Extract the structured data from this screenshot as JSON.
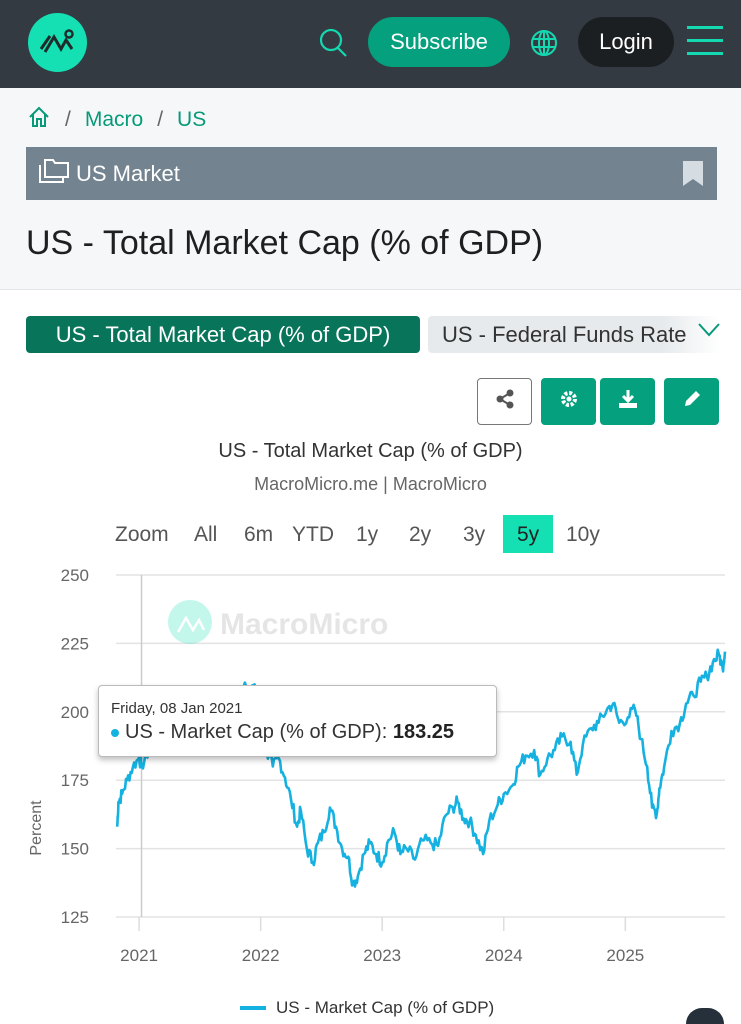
{
  "header": {
    "subscribe_label": "Subscribe",
    "login_label": "Login"
  },
  "breadcrumb": [
    "Macro",
    "US"
  ],
  "category": "US Market",
  "page_title": "US - Total Market Cap (% of GDP)",
  "tabs": [
    {
      "label": "US - Total Market Cap (% of GDP)",
      "active": true
    },
    {
      "label": "US - Federal Funds Rate",
      "active": false
    }
  ],
  "zoom": {
    "label": "Zoom",
    "options": [
      "All",
      "6m",
      "YTD",
      "1y",
      "2y",
      "3y",
      "5y",
      "10y"
    ],
    "active": "5y"
  },
  "tooltip": {
    "date": "Friday, 08 Jan 2021",
    "series": "US - Market Cap (% of GDP)",
    "value": "183.25"
  },
  "watermark": "MacroMicro",
  "colors": {
    "accent": "#05a07d",
    "line": "#15b1e0",
    "topbar": "#343a42"
  },
  "chart_data": {
    "type": "line",
    "title": "US - Total Market Cap (% of GDP)",
    "subtitle": "MacroMicro.me | MacroMicro",
    "ylabel": "Percent",
    "ylim": [
      125,
      250
    ],
    "yticks": [
      125,
      150,
      175,
      200,
      225,
      250
    ],
    "xlim": [
      2020.81,
      2025.82
    ],
    "xticks": [
      "2021",
      "2022",
      "2023",
      "2024",
      "2025"
    ],
    "legend": "bottom",
    "series": [
      {
        "name": "US - Market Cap (% of GDP)",
        "x": [
          2020.82,
          2020.83,
          2020.86,
          2020.9,
          2020.95,
          2021.0,
          2021.02,
          2021.08,
          2021.15,
          2021.25,
          2021.35,
          2021.45,
          2021.55,
          2021.65,
          2021.75,
          2021.85,
          2021.95,
          2022.0,
          2022.05,
          2022.1,
          2022.15,
          2022.2,
          2022.25,
          2022.3,
          2022.33,
          2022.38,
          2022.43,
          2022.47,
          2022.52,
          2022.57,
          2022.62,
          2022.67,
          2022.72,
          2022.76,
          2022.8,
          2022.85,
          2022.9,
          2022.95,
          2023.0,
          2023.05,
          2023.1,
          2023.15,
          2023.2,
          2023.27,
          2023.33,
          2023.4,
          2023.46,
          2023.52,
          2023.58,
          2023.62,
          2023.67,
          2023.72,
          2023.77,
          2023.83,
          2023.88,
          2023.95,
          2024.0,
          2024.07,
          2024.12,
          2024.18,
          2024.25,
          2024.3,
          2024.36,
          2024.42,
          2024.48,
          2024.55,
          2024.6,
          2024.65,
          2024.72,
          2024.78,
          2024.85,
          2024.9,
          2024.95,
          2025.02,
          2025.08,
          2025.13,
          2025.18,
          2025.22,
          2025.26,
          2025.28,
          2025.32,
          2025.38,
          2025.45,
          2025.5,
          2025.56,
          2025.62,
          2025.67,
          2025.72,
          2025.77,
          2025.8,
          2025.82
        ],
        "y": [
          158,
          167,
          170,
          175,
          180,
          183.25,
          180,
          186,
          192,
          197,
          199,
          202,
          200,
          205,
          203,
          208,
          210,
          195,
          185,
          180,
          183,
          176,
          168,
          158,
          164,
          150,
          145,
          152,
          156,
          165,
          158,
          150,
          147,
          137,
          140,
          148,
          152,
          148,
          145,
          153,
          156,
          148,
          150,
          146,
          153,
          152,
          151,
          162,
          165,
          167,
          161,
          160,
          155,
          148,
          160,
          166,
          170,
          173,
          180,
          184,
          186,
          177,
          183,
          186,
          191,
          189,
          177,
          188,
          194,
          196,
          201,
          203,
          196,
          198,
          201,
          190,
          180,
          165,
          163,
          172,
          180,
          193,
          196,
          203,
          206,
          211,
          213,
          218,
          221,
          216,
          222
        ]
      }
    ]
  }
}
